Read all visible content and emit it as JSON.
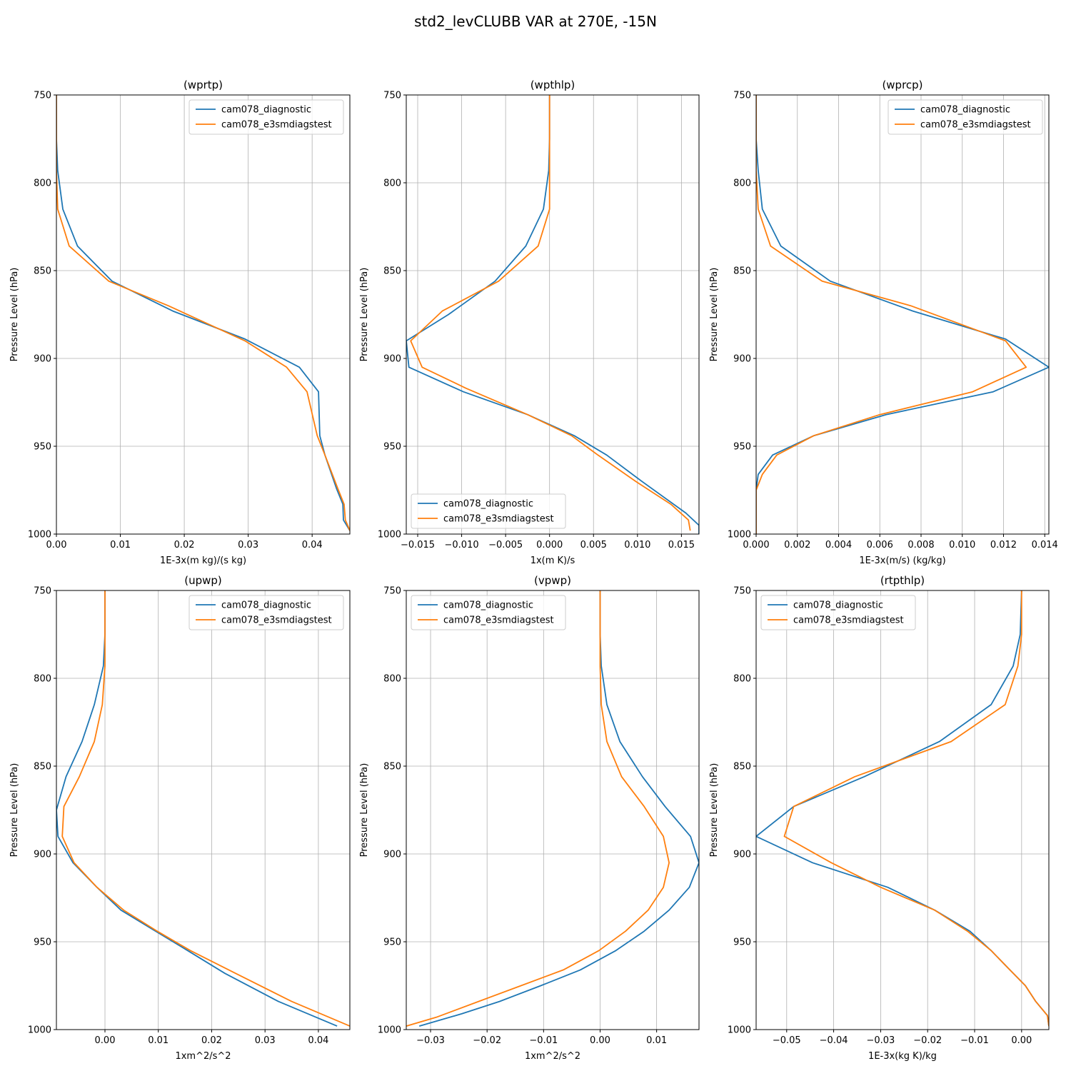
{
  "figure": {
    "title": "std2_levCLUBB VAR at 270E, -15N"
  },
  "colors": {
    "series1": "#1f77b4",
    "series2": "#ff7f0e"
  },
  "chart_data": [
    {
      "type": "line",
      "title": "(wprtp)",
      "xlabel": "1E-3x(m kg)/(s kg)",
      "ylabel": "Pressure Level (hPa)",
      "xlim": [
        0,
        0.0459
      ],
      "ylim": [
        1000,
        750
      ],
      "y_inverted": true,
      "grid": true,
      "legend": "top-right",
      "xticks": [
        0,
        0.01,
        0.02,
        0.03,
        0.04
      ],
      "xtick_labels": [
        "0.00",
        "0.01",
        "0.02",
        "0.03",
        "0.04"
      ],
      "yticks": [
        750,
        800,
        850,
        900,
        950,
        1000
      ],
      "ytick_labels": [
        "750",
        "800",
        "850",
        "900",
        "950",
        "1000"
      ],
      "series": [
        {
          "name": "cam078_diagnostic",
          "points": [
            [
              0,
              750
            ],
            [
              0,
              775
            ],
            [
              0.0002,
              793
            ],
            [
              0.001,
              815
            ],
            [
              0.0033,
              836
            ],
            [
              0.0087,
              856
            ],
            [
              0.0182,
              873
            ],
            [
              0.0295,
              889
            ],
            [
              0.038,
              905
            ],
            [
              0.041,
              919
            ],
            [
              0.0412,
              944
            ],
            [
              0.042,
              955
            ],
            [
              0.0438,
              974
            ],
            [
              0.0448,
              983
            ],
            [
              0.0449,
              992
            ],
            [
              0.0459,
              998
            ]
          ]
        },
        {
          "name": "cam078_e3smdiagstest",
          "points": [
            [
              0,
              750
            ],
            [
              0,
              775
            ],
            [
              0,
              793
            ],
            [
              0.0002,
              815
            ],
            [
              0.002,
              836
            ],
            [
              0.0082,
              856
            ],
            [
              0.0175,
              870
            ],
            [
              0.0295,
              890
            ],
            [
              0.036,
              905
            ],
            [
              0.0392,
              919
            ],
            [
              0.0408,
              944
            ],
            [
              0.042,
              955
            ],
            [
              0.044,
              974
            ],
            [
              0.045,
              983
            ],
            [
              0.0452,
              992
            ],
            [
              0.0459,
              998
            ]
          ]
        }
      ]
    },
    {
      "type": "line",
      "title": "(wpthlp)",
      "xlabel": "1x(m K)/s",
      "ylabel": "Pressure Level (hPa)",
      "xlim": [
        -0.0163,
        0.017
      ],
      "ylim": [
        1000,
        750
      ],
      "y_inverted": true,
      "grid": true,
      "legend": "bottom-left",
      "xticks": [
        -0.015,
        -0.01,
        -0.005,
        0,
        0.005,
        0.01,
        0.015
      ],
      "xtick_labels": [
        "−0.015",
        "−0.010",
        "−0.005",
        "0.000",
        "0.005",
        "0.010",
        "0.015"
      ],
      "yticks": [
        750,
        800,
        850,
        900,
        950,
        1000
      ],
      "ytick_labels": [
        "750",
        "800",
        "850",
        "900",
        "950",
        "1000"
      ],
      "series": [
        {
          "name": "cam078_diagnostic",
          "points": [
            [
              0,
              750
            ],
            [
              0,
              775
            ],
            [
              -0.0001,
              793
            ],
            [
              -0.0007,
              815
            ],
            [
              -0.0027,
              836
            ],
            [
              -0.0062,
              856
            ],
            [
              -0.0115,
              875
            ],
            [
              -0.0163,
              890
            ],
            [
              -0.016,
              905
            ],
            [
              -0.0098,
              919
            ],
            [
              -0.0025,
              932
            ],
            [
              0.0028,
              944
            ],
            [
              0.0065,
              955
            ],
            [
              0.0105,
              970
            ],
            [
              0.0155,
              988
            ],
            [
              0.017,
              995
            ],
            [
              0.017,
              1000
            ]
          ]
        },
        {
          "name": "cam078_e3smdiagstest",
          "points": [
            [
              0,
              750
            ],
            [
              0,
              775
            ],
            [
              0,
              793
            ],
            [
              0,
              815
            ],
            [
              -0.0013,
              836
            ],
            [
              -0.0058,
              856
            ],
            [
              -0.0122,
              873
            ],
            [
              -0.0158,
              890
            ],
            [
              -0.0145,
              905
            ],
            [
              -0.0095,
              917
            ],
            [
              -0.0025,
              932
            ],
            [
              0.0025,
              944
            ],
            [
              0.0055,
              955
            ],
            [
              0.0098,
              970
            ],
            [
              0.0138,
              983
            ],
            [
              0.0158,
              992
            ],
            [
              0.016,
              998
            ]
          ]
        }
      ]
    },
    {
      "type": "line",
      "title": "(wprcp)",
      "xlabel": "1E-3x(m/s) (kg/kg)",
      "ylabel": "Pressure Level (hPa)",
      "xlim": [
        0,
        0.0142
      ],
      "ylim": [
        1000,
        750
      ],
      "y_inverted": true,
      "grid": true,
      "legend": "top-right",
      "xticks": [
        0,
        0.002,
        0.004,
        0.006,
        0.008,
        0.01,
        0.012,
        0.014
      ],
      "xtick_labels": [
        "0.000",
        "0.002",
        "0.004",
        "0.006",
        "0.008",
        "0.010",
        "0.012",
        "0.014"
      ],
      "yticks": [
        750,
        800,
        850,
        900,
        950,
        1000
      ],
      "ytick_labels": [
        "750",
        "800",
        "850",
        "900",
        "950",
        "1000"
      ],
      "series": [
        {
          "name": "cam078_diagnostic",
          "points": [
            [
              0,
              750
            ],
            [
              0,
              775
            ],
            [
              0.0001,
              793
            ],
            [
              0.0003,
              815
            ],
            [
              0.0012,
              836
            ],
            [
              0.0036,
              856
            ],
            [
              0.0076,
              873
            ],
            [
              0.0121,
              889
            ],
            [
              0.0142,
              905
            ],
            [
              0.0115,
              919
            ],
            [
              0.0063,
              932
            ],
            [
              0.0028,
              944
            ],
            [
              0.0008,
              955
            ],
            [
              0.0001,
              966
            ],
            [
              0,
              975
            ],
            [
              0,
              1000
            ]
          ]
        },
        {
          "name": "cam078_e3smdiagstest",
          "points": [
            [
              0,
              750
            ],
            [
              0,
              775
            ],
            [
              0,
              793
            ],
            [
              0.0001,
              815
            ],
            [
              0.0007,
              836
            ],
            [
              0.0032,
              856
            ],
            [
              0.0075,
              870
            ],
            [
              0.0121,
              890
            ],
            [
              0.0131,
              905
            ],
            [
              0.0105,
              919
            ],
            [
              0.006,
              932
            ],
            [
              0.0028,
              944
            ],
            [
              0.001,
              955
            ],
            [
              0.0003,
              966
            ],
            [
              0,
              975
            ],
            [
              0,
              1000
            ]
          ]
        }
      ]
    },
    {
      "type": "line",
      "title": "(upwp)",
      "xlabel": "1xm^2/s^2",
      "ylabel": "Pressure Level (hPa)",
      "xlim": [
        -0.0091,
        0.0459
      ],
      "ylim": [
        1000,
        750
      ],
      "y_inverted": true,
      "grid": true,
      "legend": "top-right",
      "xticks": [
        0,
        0.01,
        0.02,
        0.03,
        0.04
      ],
      "xtick_labels": [
        "0.00",
        "0.01",
        "0.02",
        "0.03",
        "0.04"
      ],
      "yticks": [
        750,
        800,
        850,
        900,
        950,
        1000
      ],
      "ytick_labels": [
        "750",
        "800",
        "850",
        "900",
        "950",
        "1000"
      ],
      "series": [
        {
          "name": "cam078_diagnostic",
          "points": [
            [
              0,
              750
            ],
            [
              0,
              775
            ],
            [
              -0.0003,
              793
            ],
            [
              -0.002,
              815
            ],
            [
              -0.0043,
              836
            ],
            [
              -0.0073,
              856
            ],
            [
              -0.0091,
              875
            ],
            [
              -0.0088,
              890
            ],
            [
              -0.006,
              905
            ],
            [
              -0.0015,
              919
            ],
            [
              0.003,
              932
            ],
            [
              0.0095,
              944
            ],
            [
              0.0155,
              955
            ],
            [
              0.0225,
              968
            ],
            [
              0.0325,
              984
            ],
            [
              0.0435,
              998
            ]
          ]
        },
        {
          "name": "cam078_e3smdiagstest",
          "points": [
            [
              0,
              750
            ],
            [
              0,
              775
            ],
            [
              0,
              793
            ],
            [
              -0.0005,
              815
            ],
            [
              -0.002,
              836
            ],
            [
              -0.0048,
              856
            ],
            [
              -0.0077,
              873
            ],
            [
              -0.008,
              890
            ],
            [
              -0.0058,
              905
            ],
            [
              -0.0015,
              919
            ],
            [
              0.0035,
              932
            ],
            [
              0.0098,
              944
            ],
            [
              0.016,
              955
            ],
            [
              0.0245,
              968
            ],
            [
              0.035,
              984
            ],
            [
              0.0459,
              998
            ]
          ]
        }
      ]
    },
    {
      "type": "line",
      "title": "(vpwp)",
      "xlabel": "1xm^2/s^2",
      "ylabel": "Pressure Level (hPa)",
      "xlim": [
        -0.0343,
        0.0175
      ],
      "ylim": [
        1000,
        750
      ],
      "y_inverted": true,
      "grid": true,
      "legend": "top-left",
      "xticks": [
        -0.03,
        -0.02,
        -0.01,
        0,
        0.01
      ],
      "xtick_labels": [
        "−0.03",
        "−0.02",
        "−0.01",
        "0.00",
        "0.01"
      ],
      "yticks": [
        750,
        800,
        850,
        900,
        950,
        1000
      ],
      "ytick_labels": [
        "750",
        "800",
        "850",
        "900",
        "950",
        "1000"
      ],
      "series": [
        {
          "name": "cam078_diagnostic",
          "points": [
            [
              0,
              750
            ],
            [
              0,
              775
            ],
            [
              0.0002,
              793
            ],
            [
              0.0012,
              815
            ],
            [
              0.0035,
              836
            ],
            [
              0.0075,
              856
            ],
            [
              0.0115,
              873
            ],
            [
              0.016,
              890
            ],
            [
              0.0175,
              905
            ],
            [
              0.0158,
              919
            ],
            [
              0.0122,
              932
            ],
            [
              0.0078,
              944
            ],
            [
              0.0028,
              955
            ],
            [
              -0.0035,
              966
            ],
            [
              -0.0105,
              975
            ],
            [
              -0.0178,
              984
            ],
            [
              -0.0245,
              991
            ],
            [
              -0.032,
              998
            ]
          ]
        },
        {
          "name": "cam078_e3smdiagstest",
          "points": [
            [
              0,
              750
            ],
            [
              0,
              775
            ],
            [
              0,
              793
            ],
            [
              0.0002,
              815
            ],
            [
              0.0012,
              836
            ],
            [
              0.0038,
              856
            ],
            [
              0.0078,
              873
            ],
            [
              0.0112,
              890
            ],
            [
              0.0122,
              905
            ],
            [
              0.0112,
              919
            ],
            [
              0.0085,
              932
            ],
            [
              0.0045,
              944
            ],
            [
              -0.0002,
              955
            ],
            [
              -0.0065,
              966
            ],
            [
              -0.014,
              975
            ],
            [
              -0.0215,
              984
            ],
            [
              -0.029,
              993
            ],
            [
              -0.0343,
              998
            ]
          ]
        }
      ]
    },
    {
      "type": "line",
      "title": "(rtpthlp)",
      "xlabel": "1E-3x(kg K)/kg",
      "ylabel": "Pressure Level (hPa)",
      "xlim": [
        -0.0565,
        0.0058
      ],
      "ylim": [
        1000,
        750
      ],
      "y_inverted": true,
      "grid": true,
      "legend": "top-left",
      "xticks": [
        -0.05,
        -0.04,
        -0.03,
        -0.02,
        -0.01,
        0
      ],
      "xtick_labels": [
        "−0.05",
        "−0.04",
        "−0.03",
        "−0.02",
        "−0.01",
        "0.00"
      ],
      "yticks": [
        750,
        800,
        850,
        900,
        950,
        1000
      ],
      "ytick_labels": [
        "750",
        "800",
        "850",
        "900",
        "950",
        "1000"
      ],
      "series": [
        {
          "name": "cam078_diagnostic",
          "points": [
            [
              0,
              750
            ],
            [
              -0.0003,
              775
            ],
            [
              -0.0018,
              793
            ],
            [
              -0.0065,
              815
            ],
            [
              -0.0175,
              836
            ],
            [
              -0.0335,
              856
            ],
            [
              -0.0485,
              873
            ],
            [
              -0.0565,
              890
            ],
            [
              -0.0445,
              905
            ],
            [
              -0.0285,
              919
            ],
            [
              -0.0185,
              932
            ],
            [
              -0.011,
              944
            ],
            [
              -0.0065,
              955
            ],
            [
              -0.0025,
              966
            ],
            [
              0.0008,
              975
            ],
            [
              0.003,
              984
            ],
            [
              0.0055,
              992
            ],
            [
              0.0058,
              998
            ]
          ]
        },
        {
          "name": "cam078_e3smdiagstest",
          "points": [
            [
              0,
              750
            ],
            [
              0,
              775
            ],
            [
              -0.0008,
              793
            ],
            [
              -0.0035,
              815
            ],
            [
              -0.015,
              836
            ],
            [
              -0.0355,
              856
            ],
            [
              -0.0485,
              873
            ],
            [
              -0.0505,
              890
            ],
            [
              -0.0405,
              905
            ],
            [
              -0.03,
              919
            ],
            [
              -0.0185,
              932
            ],
            [
              -0.0115,
              944
            ],
            [
              -0.0065,
              955
            ],
            [
              -0.0025,
              966
            ],
            [
              0.0008,
              975
            ],
            [
              0.003,
              984
            ],
            [
              0.0055,
              992
            ],
            [
              0.0058,
              998
            ]
          ]
        }
      ]
    }
  ]
}
